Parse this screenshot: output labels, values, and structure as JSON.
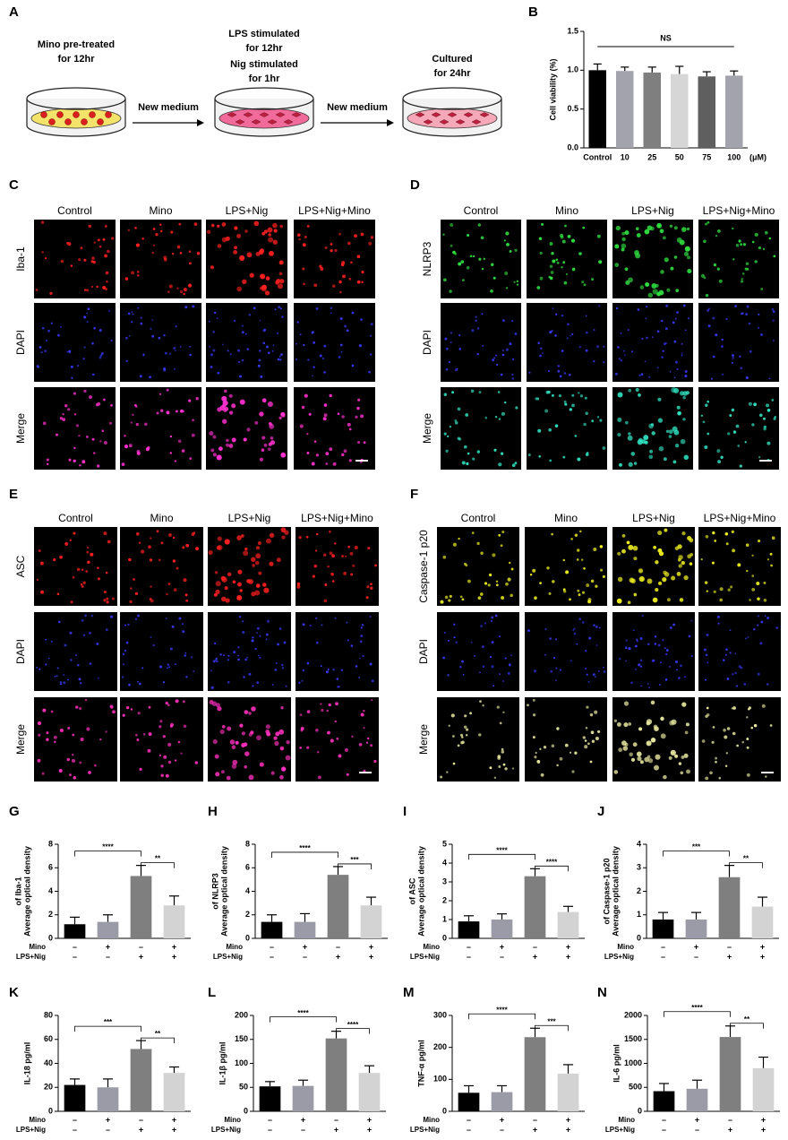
{
  "panel_a": {
    "panel": "A",
    "steps": [
      {
        "lines": [
          "Mino pre-treated",
          "for 12hr"
        ]
      },
      {
        "lines": [
          "LPS stimulated",
          "for 12hr",
          "Nig stimulated",
          "for 1hr"
        ]
      },
      {
        "lines": [
          "Cultured",
          "for 24hr"
        ]
      }
    ],
    "arrows": [
      "New medium",
      "New medium"
    ]
  },
  "image_panels": [
    {
      "panel": "C",
      "columns": [
        "Control",
        "Mino",
        "LPS+Nig",
        "LPS+Nig+Mino"
      ],
      "rows": [
        {
          "label": "Iba-1",
          "color": "#ff2a2a",
          "dot_color": "#ff2020"
        },
        {
          "label": "DAPI",
          "color": "#2b2bff",
          "dot_color": "#3a3aff"
        },
        {
          "label": "Merge",
          "color": "#000000",
          "dot_color": "#ff30d0"
        }
      ]
    },
    {
      "panel": "D",
      "columns": [
        "Control",
        "Mino",
        "LPS+Nig",
        "LPS+Nig+Mino"
      ],
      "rows": [
        {
          "label": "NLRP3",
          "color": "#22c322",
          "dot_color": "#30e040"
        },
        {
          "label": "DAPI",
          "color": "#2b2bff",
          "dot_color": "#3a3aff"
        },
        {
          "label": "Merge",
          "color": "#000000",
          "dot_color": "#30e0c0"
        }
      ]
    },
    {
      "panel": "E",
      "columns": [
        "Control",
        "Mino",
        "LPS+Nig",
        "LPS+Nig+Mino"
      ],
      "rows": [
        {
          "label": "ASC",
          "color": "#ff2a2a",
          "dot_color": "#ff2020"
        },
        {
          "label": "DAPI",
          "color": "#2b2bff",
          "dot_color": "#3a3aff"
        },
        {
          "label": "Merge",
          "color": "#000000",
          "dot_color": "#ff30c0"
        }
      ]
    },
    {
      "panel": "F",
      "columns": [
        "Control",
        "Mino",
        "LPS+Nig",
        "LPS+Nig+Mino"
      ],
      "rows": [
        {
          "label": "Caspase-1 p20",
          "color": "#f0a020",
          "dot_color": "#f0f020"
        },
        {
          "label": "DAPI",
          "color": "#2b2bff",
          "dot_color": "#3a3aff"
        },
        {
          "label": "Merge",
          "color": "#000000",
          "dot_color": "#e8e8a0"
        }
      ]
    }
  ],
  "chart_data": [
    {
      "type": "bar",
      "panel": "B",
      "ylabel": [
        "Cell viability (%)"
      ],
      "categories": [
        "Control",
        "10",
        "25",
        "50",
        "75",
        "100"
      ],
      "x_unit": "(μM)",
      "values": [
        1.0,
        0.99,
        0.97,
        0.95,
        0.92,
        0.93
      ],
      "errors": [
        0.08,
        0.05,
        0.07,
        0.1,
        0.06,
        0.06
      ],
      "colors": [
        "#000000",
        "#a3a3ad",
        "#7f7f7f",
        "#d6d6d6",
        "#5f5f5f",
        "#a3a3ad"
      ],
      "ylim": [
        0,
        1.5
      ],
      "yticks": [
        {
          "value": 0,
          "label": "0.0"
        },
        0.5,
        {
          "value": 1,
          "label": "1.0"
        },
        1.5
      ],
      "annotation": "NS"
    },
    {
      "type": "bar",
      "panel": "G",
      "ylabel": [
        "Average optical density",
        "of Iba-1"
      ],
      "values": [
        1.2,
        1.4,
        5.3,
        2.8
      ],
      "errors": [
        0.6,
        0.6,
        0.9,
        0.8
      ],
      "colors": [
        "#000000",
        "#9b9ba7",
        "#7f7f7f",
        "#d3d3d3"
      ],
      "ylim": [
        0,
        8
      ],
      "yticks": [
        0,
        2,
        4,
        6,
        8
      ],
      "significance": [
        "****",
        "**"
      ],
      "conditions": [
        {
          "name": "Mino",
          "marks": [
            "–",
            "+",
            "–",
            "+"
          ]
        },
        {
          "name": "LPS+Nig",
          "marks": [
            "–",
            "–",
            "+",
            "+"
          ]
        }
      ]
    },
    {
      "type": "bar",
      "panel": "H",
      "ylabel": [
        "Average optical density",
        "of NLRP3"
      ],
      "values": [
        1.4,
        1.4,
        5.4,
        2.8
      ],
      "errors": [
        0.6,
        0.7,
        0.7,
        0.7
      ],
      "colors": [
        "#000000",
        "#9b9ba7",
        "#7f7f7f",
        "#d3d3d3"
      ],
      "ylim": [
        0,
        8
      ],
      "yticks": [
        0,
        2,
        4,
        6,
        8
      ],
      "significance": [
        "****",
        "***"
      ],
      "conditions": [
        {
          "name": "Mino",
          "marks": [
            "–",
            "+",
            "–",
            "+"
          ]
        },
        {
          "name": "LPS+Nig",
          "marks": [
            "–",
            "–",
            "+",
            "+"
          ]
        }
      ]
    },
    {
      "type": "bar",
      "panel": "I",
      "ylabel": [
        "Average optical density",
        "of ASC"
      ],
      "values": [
        0.9,
        1.0,
        3.3,
        1.4
      ],
      "errors": [
        0.3,
        0.3,
        0.4,
        0.3
      ],
      "colors": [
        "#000000",
        "#9b9ba7",
        "#7f7f7f",
        "#d3d3d3"
      ],
      "ylim": [
        0,
        5
      ],
      "yticks": [
        0,
        1,
        2,
        3,
        4,
        5
      ],
      "significance": [
        "****",
        "****"
      ],
      "conditions": [
        {
          "name": "Mino",
          "marks": [
            "–",
            "+",
            "–",
            "+"
          ]
        },
        {
          "name": "LPS+Nig",
          "marks": [
            "–",
            "–",
            "+",
            "+"
          ]
        }
      ]
    },
    {
      "type": "bar",
      "panel": "J",
      "ylabel": [
        "Average optical density",
        "of Caspase-1 p20"
      ],
      "values": [
        0.8,
        0.8,
        2.6,
        1.35
      ],
      "errors": [
        0.3,
        0.3,
        0.5,
        0.4
      ],
      "colors": [
        "#000000",
        "#9b9ba7",
        "#7f7f7f",
        "#d3d3d3"
      ],
      "ylim": [
        0,
        4
      ],
      "yticks": [
        0,
        1,
        2,
        3,
        4
      ],
      "significance": [
        "***",
        "**"
      ],
      "conditions": [
        {
          "name": "Mino",
          "marks": [
            "–",
            "+",
            "–",
            "+"
          ]
        },
        {
          "name": "LPS+Nig",
          "marks": [
            "–",
            "–",
            "+",
            "+"
          ]
        }
      ]
    },
    {
      "type": "bar",
      "panel": "K",
      "ylabel": [
        "IL-18  pg/ml"
      ],
      "values": [
        22,
        20,
        52,
        32
      ],
      "errors": [
        5,
        7,
        7,
        5
      ],
      "colors": [
        "#000000",
        "#9b9ba7",
        "#7f7f7f",
        "#d3d3d3"
      ],
      "ylim": [
        0,
        80
      ],
      "yticks": [
        0,
        20,
        40,
        60,
        80
      ],
      "significance": [
        "***",
        "**"
      ],
      "conditions": [
        {
          "name": "Mino",
          "marks": [
            "–",
            "+",
            "–",
            "+"
          ]
        },
        {
          "name": "LPS+Nig",
          "marks": [
            "–",
            "–",
            "+",
            "+"
          ]
        }
      ]
    },
    {
      "type": "bar",
      "panel": "L",
      "ylabel": [
        "IL-1β pg/ml"
      ],
      "values": [
        52,
        53,
        152,
        80
      ],
      "errors": [
        10,
        12,
        15,
        15
      ],
      "colors": [
        "#000000",
        "#9b9ba7",
        "#7f7f7f",
        "#d3d3d3"
      ],
      "ylim": [
        0,
        200
      ],
      "yticks": [
        0,
        50,
        100,
        150,
        200
      ],
      "significance": [
        "****",
        "****"
      ],
      "conditions": [
        {
          "name": "Mino",
          "marks": [
            "–",
            "+",
            "–",
            "+"
          ]
        },
        {
          "name": "LPS+Nig",
          "marks": [
            "–",
            "–",
            "+",
            "+"
          ]
        }
      ]
    },
    {
      "type": "bar",
      "panel": "M",
      "ylabel": [
        "TNF-α pg/ml"
      ],
      "values": [
        58,
        60,
        232,
        118
      ],
      "errors": [
        22,
        20,
        28,
        28
      ],
      "colors": [
        "#000000",
        "#9b9ba7",
        "#7f7f7f",
        "#d3d3d3"
      ],
      "ylim": [
        0,
        300
      ],
      "yticks": [
        0,
        100,
        200,
        300
      ],
      "significance": [
        "****",
        "***"
      ],
      "conditions": [
        {
          "name": "Mino",
          "marks": [
            "–",
            "+",
            "–",
            "+"
          ]
        },
        {
          "name": "LPS+Nig",
          "marks": [
            "–",
            "–",
            "+",
            "+"
          ]
        }
      ]
    },
    {
      "type": "bar",
      "panel": "N",
      "ylabel": [
        "IL-6 pg/ml"
      ],
      "values": [
        420,
        470,
        1550,
        900
      ],
      "errors": [
        160,
        180,
        230,
        230
      ],
      "colors": [
        "#000000",
        "#9b9ba7",
        "#7f7f7f",
        "#d3d3d3"
      ],
      "ylim": [
        0,
        2000
      ],
      "yticks": [
        0,
        500,
        1000,
        1500,
        2000
      ],
      "significance": [
        "****",
        "**"
      ],
      "conditions": [
        {
          "name": "Mino",
          "marks": [
            "–",
            "+",
            "–",
            "+"
          ]
        },
        {
          "name": "LPS+Nig",
          "marks": [
            "–",
            "–",
            "+",
            "+"
          ]
        }
      ]
    }
  ]
}
